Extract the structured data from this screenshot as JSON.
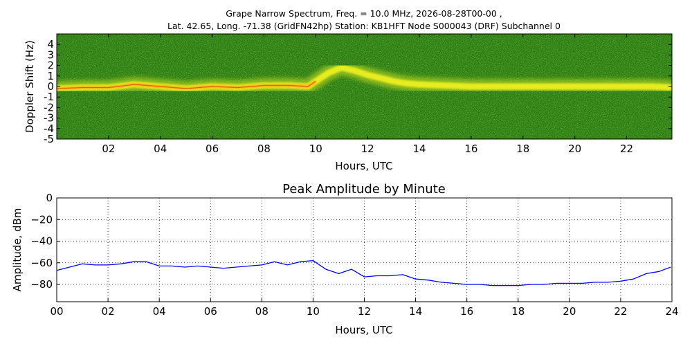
{
  "chart_data": [
    {
      "type": "heatmap",
      "title_line1": "Grape Narrow Spectrum, Freq. = 10.0 MHz, 2026-08-28T00-00 ,",
      "title_line2": "Lat.  42.65, Long. -71.38 (GridFN42hp) Station: KB1HFT Node S000043 (DRF) Subchannel 0",
      "xlabel": "Hours, UTC",
      "ylabel": "Doppler Shift (Hz)",
      "xlim": [
        0,
        23.75
      ],
      "ylim": [
        -5,
        5
      ],
      "xticks": [
        2,
        4,
        6,
        8,
        10,
        12,
        14,
        16,
        18,
        20,
        22
      ],
      "xtick_labels": [
        "02",
        "04",
        "06",
        "08",
        "10",
        "12",
        "14",
        "16",
        "18",
        "20",
        "22"
      ],
      "yticks": [
        4,
        3,
        2,
        1,
        0,
        -1,
        -2,
        -3,
        -4,
        -5
      ],
      "ytick_labels": [
        "4",
        "3",
        "2",
        "1",
        "0",
        "-1",
        "-2",
        "-3",
        "-4",
        "-5"
      ],
      "colormap": [
        "#1e6e0a",
        "#3f9a1a",
        "#9ccc22",
        "#f2f21e",
        "#ff9a12",
        "#e83818"
      ],
      "trace_doppler_hz": {
        "x": [
          0,
          1,
          2,
          3,
          4,
          5,
          6,
          7,
          8,
          9,
          9.7,
          10,
          10.5,
          11,
          11.5,
          12,
          12.5,
          13,
          13.5,
          14,
          15,
          16,
          17,
          18,
          19,
          20,
          21,
          22,
          23,
          23.75
        ],
        "y": [
          -0.2,
          -0.1,
          -0.1,
          0.2,
          0.0,
          -0.2,
          0.0,
          -0.1,
          0.1,
          0.1,
          0.0,
          0.5,
          1.3,
          1.8,
          1.5,
          1.1,
          0.8,
          0.5,
          0.3,
          0.2,
          0.1,
          0.0,
          0.0,
          0.0,
          0.0,
          0.0,
          0.0,
          0.0,
          0.0,
          -0.1
        ]
      }
    },
    {
      "type": "line",
      "title": "Peak Amplitude by Minute",
      "xlabel": "Hours, UTC",
      "ylabel": "Amplitude, dBm",
      "xlim": [
        0,
        24
      ],
      "ylim": [
        -96,
        0
      ],
      "xticks": [
        0,
        2,
        4,
        6,
        8,
        10,
        12,
        14,
        16,
        18,
        20,
        22,
        24
      ],
      "xtick_labels": [
        "00",
        "02",
        "04",
        "06",
        "08",
        "10",
        "12",
        "14",
        "16",
        "18",
        "20",
        "22",
        "24"
      ],
      "yticks": [
        0,
        -20,
        -40,
        -60,
        -80
      ],
      "ytick_labels": [
        "0",
        "−20",
        "−40",
        "−60",
        "−80"
      ],
      "grid": true,
      "series": [
        {
          "color": "#0000ff",
          "x": [
            0,
            0.5,
            1,
            1.5,
            2,
            2.5,
            3,
            3.5,
            4,
            4.5,
            5,
            5.5,
            6,
            6.5,
            7,
            7.5,
            8,
            8.5,
            9,
            9.5,
            10,
            10.5,
            11,
            11.5,
            12,
            12.5,
            13,
            13.5,
            14,
            14.5,
            15,
            15.5,
            16,
            16.5,
            17,
            17.5,
            18,
            18.5,
            19,
            19.5,
            20,
            20.5,
            21,
            21.5,
            22,
            22.5,
            23,
            23.5,
            23.95
          ],
          "y": [
            -67,
            -64,
            -61,
            -62,
            -62,
            -61,
            -59,
            -59,
            -63,
            -63,
            -64,
            -63,
            -64,
            -65,
            -64,
            -63,
            -62,
            -59,
            -62,
            -59,
            -58,
            -66,
            -70,
            -66,
            -73,
            -72,
            -72,
            -71,
            -75,
            -76,
            -78,
            -79,
            -80,
            -80,
            -81,
            -81,
            -81,
            -80,
            -80,
            -79,
            -79,
            -79,
            -78,
            -78,
            -77,
            -75,
            -70,
            -68,
            -64
          ]
        }
      ]
    }
  ]
}
